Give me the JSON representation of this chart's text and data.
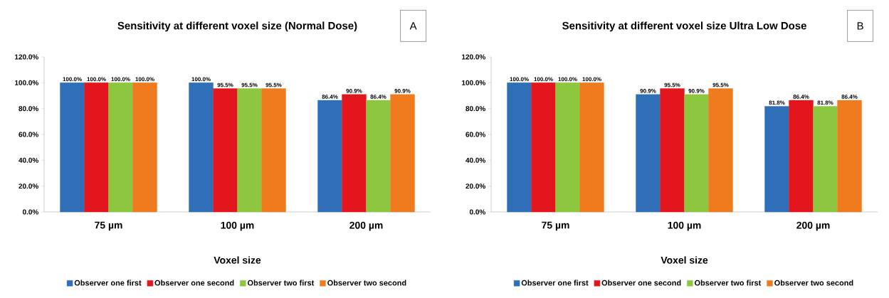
{
  "chart_data": [
    {
      "type": "bar",
      "title": "Sensitivity at different voxel size  (Normal Dose)",
      "xlabel": "Voxel size",
      "categories": [
        "75 µm",
        "100 µm",
        "200 µm"
      ],
      "series": [
        {
          "name": "Observer one first",
          "color": "#2f6fb7",
          "values": [
            100.0,
            100.0,
            86.4
          ],
          "value_labels": [
            "100.0%",
            "100.0%",
            "86.4%"
          ]
        },
        {
          "name": "Observer one second",
          "color": "#e3161d",
          "values": [
            100.0,
            95.5,
            90.9
          ],
          "value_labels": [
            "100.0%",
            "95.5%",
            "90.9%"
          ]
        },
        {
          "name": "Observer two first",
          "color": "#8dc63f",
          "values": [
            100.0,
            95.5,
            86.4
          ],
          "value_labels": [
            "100.0%",
            "95.5%",
            "86.4%"
          ]
        },
        {
          "name": "Observer two second",
          "color": "#f07b1f",
          "values": [
            100.0,
            95.5,
            90.9
          ],
          "value_labels": [
            "100.0%",
            "95.5%",
            "90.9%"
          ]
        }
      ],
      "ylim": [
        0,
        120
      ],
      "yticks": [
        {
          "value": 0,
          "label": "0.0%"
        },
        {
          "value": 20,
          "label": "20.0%"
        },
        {
          "value": 40,
          "label": "40.0%"
        },
        {
          "value": 60,
          "label": "60.0%"
        },
        {
          "value": 80,
          "label": "80.0%"
        },
        {
          "value": 100,
          "label": "100.0%"
        },
        {
          "value": 120,
          "label": "120.0%"
        }
      ],
      "legend": "bottom",
      "annotations": [
        "A"
      ]
    },
    {
      "type": "bar",
      "title": "Sensitivity at different voxel size Ultra Low Dose",
      "xlabel": "Voxel size",
      "categories": [
        "75 µm",
        "100 µm",
        "200 µm"
      ],
      "series": [
        {
          "name": "Observer one first",
          "color": "#2f6fb7",
          "values": [
            100.0,
            90.9,
            81.8
          ],
          "value_labels": [
            "100.0%",
            "90.9%",
            "81.8%"
          ]
        },
        {
          "name": "Observer one second",
          "color": "#e3161d",
          "values": [
            100.0,
            95.5,
            86.4
          ],
          "value_labels": [
            "100.0%",
            "95.5%",
            "86.4%"
          ]
        },
        {
          "name": "Observer two first",
          "color": "#8dc63f",
          "values": [
            100.0,
            90.9,
            81.8
          ],
          "value_labels": [
            "100.0%",
            "90.9%",
            "81.8%"
          ]
        },
        {
          "name": "Observer two second",
          "color": "#f07b1f",
          "values": [
            100.0,
            95.5,
            86.4
          ],
          "value_labels": [
            "100.0%",
            "95.5%",
            "86.4%"
          ]
        }
      ],
      "ylim": [
        0,
        120
      ],
      "yticks": [
        {
          "value": 0,
          "label": "0.0%"
        },
        {
          "value": 20,
          "label": "20.0%"
        },
        {
          "value": 40,
          "label": "40.0%"
        },
        {
          "value": 60,
          "label": "60.0%"
        },
        {
          "value": 80,
          "label": "80.0%"
        },
        {
          "value": 100,
          "label": "100.0%"
        },
        {
          "value": 120,
          "label": "120.0%"
        }
      ],
      "legend": "bottom",
      "annotations": [
        "B"
      ]
    }
  ]
}
